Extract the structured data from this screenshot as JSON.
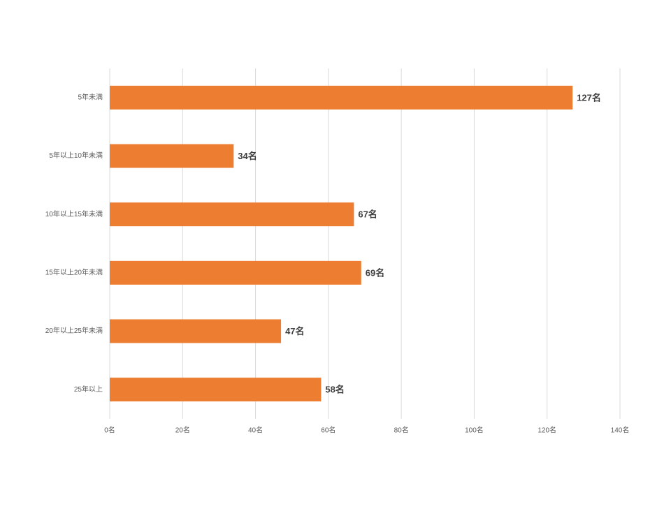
{
  "chart_data": {
    "type": "bar",
    "orientation": "horizontal",
    "categories": [
      "5年未満",
      "5年以上10年未満",
      "10年以上15年未満",
      "15年以上20年未満",
      "20年以上25年未満",
      "25年以上"
    ],
    "values": [
      127,
      34,
      67,
      69,
      47,
      58
    ],
    "value_labels": [
      "127名",
      "34名",
      "67名",
      "69名",
      "47名",
      "58名"
    ],
    "color": "#ed7d31",
    "xlim": [
      0,
      140
    ],
    "xticks": [
      {
        "value": 0,
        "label": "0名"
      },
      {
        "value": 20,
        "label": "20名"
      },
      {
        "value": 40,
        "label": "40名"
      },
      {
        "value": 60,
        "label": "60名"
      },
      {
        "value": 80,
        "label": "80名"
      },
      {
        "value": 100,
        "label": "100名"
      },
      {
        "value": 120,
        "label": "120名"
      },
      {
        "value": 140,
        "label": "140名"
      }
    ],
    "grid": true
  }
}
